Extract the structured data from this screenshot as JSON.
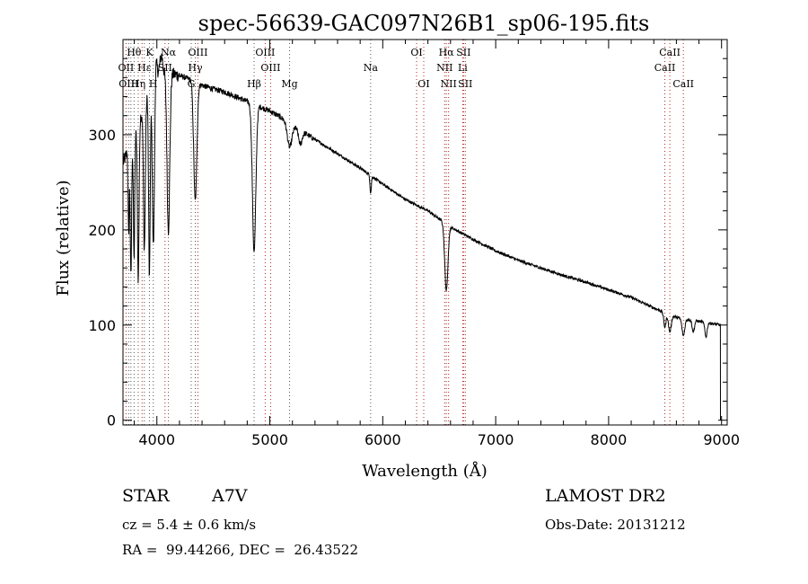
{
  "chart_data": {
    "type": "line",
    "title": "spec-56639-GAC097N26B1_sp06-195.fits",
    "xlabel": "Wavelength (Å)",
    "ylabel": "Flux (relative)",
    "xlim": [
      3700,
      9050
    ],
    "ylim": [
      -5,
      400
    ],
    "x_ticks": [
      4000,
      5000,
      6000,
      7000,
      8000,
      9000
    ],
    "y_ticks": [
      0,
      100,
      200,
      300
    ],
    "continuum": [
      [
        3700,
        270
      ],
      [
        3800,
        300
      ],
      [
        3900,
        335
      ],
      [
        3950,
        355
      ],
      [
        4000,
        365
      ],
      [
        4100,
        365
      ],
      [
        4200,
        362
      ],
      [
        4300,
        358
      ],
      [
        4400,
        352
      ],
      [
        4500,
        348
      ],
      [
        4600,
        345
      ],
      [
        4700,
        340
      ],
      [
        4800,
        335
      ],
      [
        4900,
        330
      ],
      [
        5000,
        325
      ],
      [
        5100,
        318
      ],
      [
        5200,
        310
      ],
      [
        5400,
        295
      ],
      [
        5600,
        280
      ],
      [
        5800,
        265
      ],
      [
        6000,
        248
      ],
      [
        6200,
        232
      ],
      [
        6400,
        220
      ],
      [
        6600,
        203
      ],
      [
        6800,
        190
      ],
      [
        7000,
        178
      ],
      [
        7200,
        168
      ],
      [
        7400,
        160
      ],
      [
        7600,
        152
      ],
      [
        7800,
        145
      ],
      [
        8000,
        137
      ],
      [
        8200,
        129
      ],
      [
        8400,
        118
      ],
      [
        8600,
        108
      ],
      [
        8800,
        104
      ],
      [
        8990,
        100
      ]
    ],
    "absorption_features": [
      {
        "center": 3750,
        "depth": 90,
        "width": 5
      },
      {
        "center": 3770,
        "depth": 140,
        "width": 6
      },
      {
        "center": 3798,
        "depth": 130,
        "width": 6
      },
      {
        "center": 3835,
        "depth": 165,
        "width": 7
      },
      {
        "center": 3889,
        "depth": 150,
        "width": 8
      },
      {
        "center": 3934,
        "depth": 200,
        "width": 7
      },
      {
        "center": 3970,
        "depth": 185,
        "width": 10
      },
      {
        "center": 4102,
        "depth": 165,
        "width": 12
      },
      {
        "center": 4340,
        "depth": 125,
        "width": 14
      },
      {
        "center": 4861,
        "depth": 155,
        "width": 15
      },
      {
        "center": 5175,
        "depth": 25,
        "width": 20
      },
      {
        "center": 5270,
        "depth": 15,
        "width": 15
      },
      {
        "center": 5893,
        "depth": 18,
        "width": 6
      },
      {
        "center": 6563,
        "depth": 70,
        "width": 14
      },
      {
        "center": 8498,
        "depth": 15,
        "width": 10
      },
      {
        "center": 8542,
        "depth": 18,
        "width": 12
      },
      {
        "center": 8662,
        "depth": 18,
        "width": 12
      },
      {
        "center": 8750,
        "depth": 12,
        "width": 10
      },
      {
        "center": 8862,
        "depth": 15,
        "width": 10
      }
    ],
    "emission_features": [
      {
        "center": 3985,
        "height": 30,
        "width": 10
      },
      {
        "center": 4040,
        "height": 18,
        "width": 12
      }
    ],
    "line_markers": [
      {
        "wavelength": 3727,
        "color": "#b22222"
      },
      {
        "wavelength": 3750,
        "color": "#555555"
      },
      {
        "wavelength": 3770,
        "color": "#555555"
      },
      {
        "wavelength": 3798,
        "color": "#555555"
      },
      {
        "wavelength": 3835,
        "color": "#555555"
      },
      {
        "wavelength": 3869,
        "color": "#b22222"
      },
      {
        "wavelength": 3889,
        "color": "#555555"
      },
      {
        "wavelength": 3934,
        "color": "#555555"
      },
      {
        "wavelength": 3968,
        "color": "#555555"
      },
      {
        "wavelength": 4072,
        "color": "#b22222"
      },
      {
        "wavelength": 4102,
        "color": "#555555"
      },
      {
        "wavelength": 4304,
        "color": "#555555"
      },
      {
        "wavelength": 4340,
        "color": "#555555"
      },
      {
        "wavelength": 4363,
        "color": "#b22222"
      },
      {
        "wavelength": 4861,
        "color": "#555555"
      },
      {
        "wavelength": 4959,
        "color": "#b22222"
      },
      {
        "wavelength": 5007,
        "color": "#b22222"
      },
      {
        "wavelength": 5175,
        "color": "#555555"
      },
      {
        "wavelength": 5893,
        "color": "#555555"
      },
      {
        "wavelength": 6300,
        "color": "#b22222"
      },
      {
        "wavelength": 6363,
        "color": "#b22222"
      },
      {
        "wavelength": 6548,
        "color": "#b22222"
      },
      {
        "wavelength": 6563,
        "color": "#b22222"
      },
      {
        "wavelength": 6583,
        "color": "#b22222"
      },
      {
        "wavelength": 6708,
        "color": "#b22222"
      },
      {
        "wavelength": 6716,
        "color": "#b22222"
      },
      {
        "wavelength": 6731,
        "color": "#b22222"
      },
      {
        "wavelength": 8498,
        "color": "#b22222"
      },
      {
        "wavelength": 8542,
        "color": "#b22222"
      },
      {
        "wavelength": 8662,
        "color": "#b22222"
      }
    ],
    "line_labels": [
      {
        "text": "Hθ",
        "wavelength": 3798,
        "row": 1
      },
      {
        "text": "K",
        "wavelength": 3934,
        "row": 1
      },
      {
        "text": "Nα",
        "wavelength": 4102,
        "row": 1
      },
      {
        "text": "OIII",
        "wavelength": 4363,
        "row": 1
      },
      {
        "text": "OIII",
        "wavelength": 4959,
        "row": 1
      },
      {
        "text": "OI",
        "wavelength": 6300,
        "row": 1
      },
      {
        "text": "Hα",
        "wavelength": 6563,
        "row": 1
      },
      {
        "text": "SII",
        "wavelength": 6716,
        "row": 1
      },
      {
        "text": "CaII",
        "wavelength": 8542,
        "row": 1
      },
      {
        "text": "OII",
        "wavelength": 3727,
        "row": 2
      },
      {
        "text": "Hε",
        "wavelength": 3889,
        "row": 2
      },
      {
        "text": "SII",
        "wavelength": 4072,
        "row": 2
      },
      {
        "text": "Hγ",
        "wavelength": 4340,
        "row": 2
      },
      {
        "text": "OIII",
        "wavelength": 5007,
        "row": 2
      },
      {
        "text": "Na",
        "wavelength": 5893,
        "row": 2
      },
      {
        "text": "NII",
        "wavelength": 6548,
        "row": 2
      },
      {
        "text": "Li",
        "wavelength": 6708,
        "row": 2
      },
      {
        "text": "CaII",
        "wavelength": 8498,
        "row": 2
      },
      {
        "text": "OIII",
        "wavelength": 3750,
        "row": 3
      },
      {
        "text": "Hη",
        "wavelength": 3835,
        "row": 3
      },
      {
        "text": "H",
        "wavelength": 3968,
        "row": 3
      },
      {
        "text": "G",
        "wavelength": 4304,
        "row": 3
      },
      {
        "text": "Hβ",
        "wavelength": 4861,
        "row": 3
      },
      {
        "text": "Mg",
        "wavelength": 5175,
        "row": 3
      },
      {
        "text": "OI",
        "wavelength": 6363,
        "row": 3
      },
      {
        "text": "NII",
        "wavelength": 6583,
        "row": 3
      },
      {
        "text": "SII",
        "wavelength": 6731,
        "row": 3
      },
      {
        "text": "CaII",
        "wavelength": 8662,
        "row": 3
      }
    ]
  },
  "info": {
    "object_type": "STAR",
    "subclass": "A7V",
    "survey": "LAMOST DR2",
    "redshift": "cz = 5.4 ± 0.6 km/s",
    "obs_date": "Obs-Date: 20131212",
    "coords": "RA =  99.44266, DEC =  26.43522"
  }
}
